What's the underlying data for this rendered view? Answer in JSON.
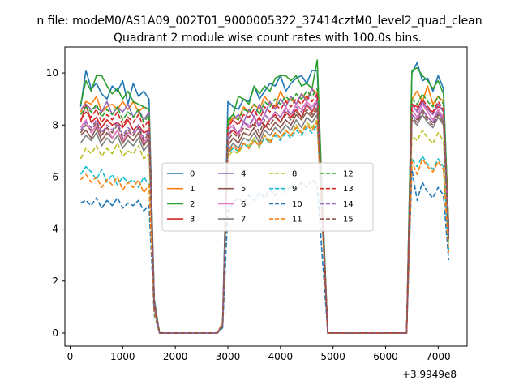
{
  "chart_data": {
    "type": "line",
    "suptitle": "n file: modeM0/AS1A09_002T01_9000005322_37414cztM0_level2_quad_clean",
    "title": "Quadrant 2 module wise count rates with 100.0s bins.",
    "xlabel": "",
    "ylabel": "",
    "x_offset_label": "+3.9949e8",
    "xlim": [
      -100,
      7550
    ],
    "ylim": [
      -0.5,
      11.0
    ],
    "x_ticks": [
      0,
      1000,
      2000,
      3000,
      4000,
      5000,
      6000,
      7000
    ],
    "y_ticks": [
      0,
      2,
      4,
      6,
      8,
      10
    ],
    "grid": false,
    "legend_position": "center",
    "legend_columns": 4,
    "x": [
      200,
      300,
      400,
      500,
      600,
      700,
      800,
      900,
      1000,
      1100,
      1200,
      1300,
      1400,
      1500,
      1600,
      1700,
      1800,
      1900,
      2000,
      2100,
      2200,
      2300,
      2400,
      2500,
      2600,
      2700,
      2800,
      2900,
      3000,
      3100,
      3200,
      3300,
      3400,
      3500,
      3600,
      3700,
      3800,
      3900,
      4000,
      4100,
      4200,
      4300,
      4400,
      4500,
      4600,
      4700,
      4800,
      4900,
      5000,
      5100,
      5200,
      5300,
      5400,
      5500,
      5600,
      5700,
      5800,
      5900,
      6000,
      6100,
      6200,
      6300,
      6400,
      6500,
      6600,
      6700,
      6800,
      6900,
      7000,
      7100,
      7200
    ],
    "series": [
      {
        "name": "0",
        "color": "#1f77b4",
        "dash": "solid",
        "values": [
          8.7,
          10.1,
          9.4,
          9.6,
          9.2,
          9.0,
          9.5,
          9.3,
          9.7,
          8.8,
          9.6,
          9.1,
          9.3,
          9.0,
          1.3,
          0,
          0,
          0,
          0,
          0,
          0,
          0,
          0,
          0,
          0,
          0,
          0,
          0.4,
          8.9,
          8.7,
          8.6,
          9.0,
          8.9,
          9.5,
          9.0,
          9.3,
          9.6,
          9.5,
          9.9,
          9.3,
          9.6,
          9.8,
          9.9,
          9.6,
          10.1,
          10.1,
          5.0,
          0,
          0,
          0,
          0,
          0,
          0,
          0,
          0,
          0,
          0,
          0,
          0,
          0,
          0,
          0,
          0,
          10.0,
          10.4,
          9.7,
          9.8,
          9.3,
          9.9,
          9.4,
          4.0
        ]
      },
      {
        "name": "1",
        "color": "#ff7f0e",
        "dash": "solid",
        "values": [
          8.5,
          8.9,
          8.8,
          9.1,
          8.5,
          8.7,
          8.8,
          8.6,
          8.9,
          8.6,
          8.9,
          8.5,
          8.7,
          8.6,
          1.2,
          0,
          0,
          0,
          0,
          0,
          0,
          0,
          0,
          0,
          0,
          0,
          0,
          0.4,
          8.0,
          8.3,
          8.2,
          8.7,
          8.5,
          8.8,
          8.6,
          9.1,
          8.8,
          8.7,
          9.3,
          8.9,
          9.0,
          8.8,
          9.2,
          9.0,
          9.4,
          9.2,
          4.7,
          0,
          0,
          0,
          0,
          0,
          0,
          0,
          0,
          0,
          0,
          0,
          0,
          0,
          0,
          0,
          0,
          9.0,
          9.3,
          8.9,
          9.5,
          8.8,
          9.1,
          8.9,
          3.8
        ]
      },
      {
        "name": "2",
        "color": "#2ca02c",
        "dash": "solid",
        "values": [
          8.8,
          9.7,
          9.3,
          9.9,
          9.9,
          9.5,
          9.2,
          9.4,
          9.0,
          9.3,
          8.9,
          8.8,
          8.7,
          8.6,
          1.2,
          0,
          0,
          0,
          0,
          0,
          0,
          0,
          0,
          0,
          0,
          0,
          0,
          0.3,
          8.2,
          8.4,
          9.1,
          9.0,
          8.8,
          9.5,
          9.2,
          9.5,
          9.3,
          9.8,
          9.9,
          9.9,
          9.7,
          9.9,
          9.5,
          9.6,
          9.4,
          10.5,
          4.9,
          0,
          0,
          0,
          0,
          0,
          0,
          0,
          0,
          0,
          0,
          0,
          0,
          0,
          0,
          0,
          0,
          10.1,
          10.2,
          9.9,
          9.7,
          9.4,
          9.7,
          9.2,
          4.1
        ]
      },
      {
        "name": "3",
        "color": "#d62728",
        "dash": "solid",
        "values": [
          8.1,
          8.8,
          8.1,
          8.3,
          7.9,
          8.2,
          8.0,
          8.1,
          7.9,
          8.2,
          7.8,
          8.0,
          7.7,
          7.8,
          1.1,
          0,
          0,
          0,
          0,
          0,
          0,
          0,
          0,
          0,
          0,
          0,
          0,
          0.3,
          7.6,
          7.8,
          7.6,
          8.1,
          7.9,
          8.0,
          8.3,
          7.9,
          8.2,
          8.4,
          8.1,
          8.5,
          8.3,
          8.6,
          8.3,
          8.8,
          8.5,
          8.9,
          4.4,
          0,
          0,
          0,
          0,
          0,
          0,
          0,
          0,
          0,
          0,
          0,
          0,
          0,
          0,
          0,
          0,
          8.8,
          8.7,
          8.9,
          8.6,
          8.5,
          8.7,
          8.6,
          3.9
        ]
      },
      {
        "name": "4",
        "color": "#9467bd",
        "dash": "solid",
        "values": [
          8.6,
          8.8,
          8.6,
          8.7,
          8.5,
          8.9,
          8.4,
          8.7,
          8.5,
          8.8,
          8.3,
          8.6,
          8.2,
          8.5,
          1.1,
          0,
          0,
          0,
          0,
          0,
          0,
          0,
          0,
          0,
          0,
          0,
          0,
          0.3,
          7.9,
          8.2,
          8.4,
          8.1,
          8.6,
          8.3,
          8.8,
          8.4,
          8.9,
          8.6,
          9.0,
          8.7,
          9.1,
          8.8,
          9.2,
          8.9,
          9.4,
          9.0,
          4.5,
          0,
          0,
          0,
          0,
          0,
          0,
          0,
          0,
          0,
          0,
          0,
          0,
          0,
          0,
          0,
          0,
          8.8,
          8.5,
          8.9,
          8.6,
          8.4,
          8.8,
          8.5,
          3.8
        ]
      },
      {
        "name": "5",
        "color": "#8c564b",
        "dash": "solid",
        "values": [
          7.6,
          7.8,
          7.5,
          7.9,
          7.4,
          7.7,
          7.5,
          7.8,
          7.3,
          7.6,
          7.4,
          7.7,
          7.2,
          7.5,
          1.0,
          0,
          0,
          0,
          0,
          0,
          0,
          0,
          0,
          0,
          0,
          0,
          0,
          0.3,
          7.2,
          7.5,
          7.3,
          7.7,
          7.6,
          7.9,
          7.5,
          8.0,
          7.8,
          8.1,
          7.9,
          8.2,
          8.0,
          8.4,
          8.2,
          8.5,
          8.3,
          8.6,
          4.3,
          0,
          0,
          0,
          0,
          0,
          0,
          0,
          0,
          0,
          0,
          0,
          0,
          0,
          0,
          0,
          0,
          8.4,
          8.2,
          8.6,
          8.3,
          8.1,
          8.5,
          8.2,
          3.7
        ]
      },
      {
        "name": "6",
        "color": "#e377c2",
        "dash": "solid",
        "values": [
          7.9,
          8.2,
          7.7,
          8.0,
          7.6,
          7.9,
          7.5,
          7.8,
          7.4,
          7.7,
          7.6,
          7.9,
          7.3,
          7.6,
          1.0,
          0,
          0,
          0,
          0,
          0,
          0,
          0,
          0,
          0,
          0,
          0,
          0,
          0.3,
          7.8,
          8.0,
          7.6,
          8.1,
          7.9,
          8.3,
          8.0,
          8.4,
          8.2,
          8.5,
          8.3,
          8.7,
          8.4,
          8.8,
          8.6,
          8.9,
          8.7,
          9.0,
          4.4,
          0,
          0,
          0,
          0,
          0,
          0,
          0,
          0,
          0,
          0,
          0,
          0,
          0,
          0,
          0,
          0,
          8.6,
          8.3,
          8.8,
          8.5,
          8.2,
          8.6,
          8.3,
          3.8
        ]
      },
      {
        "name": "7",
        "color": "#7f7f7f",
        "dash": "solid",
        "values": [
          7.3,
          7.6,
          7.4,
          7.7,
          7.2,
          7.5,
          7.3,
          7.6,
          7.1,
          7.4,
          7.2,
          7.5,
          7.0,
          7.3,
          1.0,
          0,
          0,
          0,
          0,
          0,
          0,
          0,
          0,
          0,
          0,
          0,
          0,
          0.3,
          7.0,
          7.3,
          7.1,
          7.5,
          7.4,
          7.7,
          7.3,
          7.8,
          7.6,
          7.9,
          7.7,
          8.0,
          7.8,
          8.2,
          7.9,
          8.3,
          8.1,
          8.4,
          4.2,
          0,
          0,
          0,
          0,
          0,
          0,
          0,
          0,
          0,
          0,
          0,
          0,
          0,
          0,
          0,
          0,
          8.2,
          8.0,
          8.4,
          8.1,
          7.9,
          8.3,
          8.0,
          3.6
        ]
      },
      {
        "name": "8",
        "color": "#bcbd22",
        "dash": "dashed",
        "values": [
          6.7,
          7.1,
          6.9,
          7.2,
          6.8,
          7.1,
          6.9,
          7.3,
          6.8,
          7.0,
          6.9,
          7.2,
          6.7,
          6.9,
          0.9,
          0,
          0,
          0,
          0,
          0,
          0,
          0,
          0,
          0,
          0,
          0,
          0,
          0.3,
          6.8,
          7.0,
          6.9,
          7.3,
          7.2,
          7.5,
          7.1,
          7.6,
          7.4,
          7.7,
          7.5,
          7.8,
          7.6,
          8.0,
          7.7,
          8.1,
          7.9,
          8.2,
          4.1,
          0,
          0,
          0,
          0,
          0,
          0,
          0,
          0,
          0,
          0,
          0,
          0,
          0,
          0,
          0,
          0,
          7.6,
          7.4,
          7.8,
          7.5,
          7.3,
          7.7,
          7.4,
          3.4
        ]
      },
      {
        "name": "9",
        "color": "#17becf",
        "dash": "dashed",
        "values": [
          6.1,
          6.4,
          6.2,
          5.9,
          6.3,
          5.8,
          6.1,
          5.7,
          6.0,
          5.8,
          5.9,
          5.6,
          6.0,
          5.7,
          0.8,
          0,
          0,
          0,
          0,
          0,
          0,
          0,
          0,
          0,
          0,
          0,
          0,
          0.3,
          6.9,
          7.1,
          7.0,
          7.3,
          7.1,
          7.4,
          7.2,
          7.5,
          7.3,
          7.6,
          7.4,
          7.7,
          7.5,
          7.8,
          7.6,
          7.9,
          7.7,
          8.0,
          4.0,
          0,
          0,
          0,
          0,
          0,
          0,
          0,
          0,
          0,
          0,
          0,
          0,
          0,
          0,
          0,
          0,
          6.7,
          6.4,
          6.8,
          6.5,
          6.3,
          6.7,
          6.4,
          3.2
        ]
      },
      {
        "name": "10",
        "color": "#1f77b4",
        "dash": "dashed",
        "values": [
          5.0,
          5.1,
          4.9,
          5.2,
          4.8,
          5.1,
          4.9,
          5.2,
          4.8,
          5.0,
          4.9,
          5.1,
          4.7,
          4.9,
          0.7,
          0,
          0,
          0,
          0,
          0,
          0,
          0,
          0,
          0,
          0,
          0,
          0,
          0.2,
          4.7,
          5.0,
          5.2,
          5.0,
          5.3,
          5.1,
          5.4,
          5.2,
          5.5,
          5.3,
          5.6,
          5.4,
          5.7,
          5.5,
          5.8,
          5.6,
          5.9,
          5.7,
          2.8,
          0,
          0,
          0,
          0,
          0,
          0,
          0,
          0,
          0,
          0,
          0,
          0,
          0,
          0,
          0,
          0,
          6.3,
          5.1,
          5.8,
          5.4,
          5.2,
          5.6,
          5.3,
          2.8
        ]
      },
      {
        "name": "11",
        "color": "#ff7f0e",
        "dash": "dashed",
        "values": [
          5.9,
          6.1,
          5.8,
          6.0,
          5.6,
          5.9,
          5.7,
          6.0,
          5.5,
          5.8,
          5.6,
          5.9,
          5.4,
          5.7,
          0.8,
          0,
          0,
          0,
          0,
          0,
          0,
          0,
          0,
          0,
          0,
          0,
          0,
          0.3,
          6.9,
          7.2,
          7.0,
          7.3,
          7.1,
          7.4,
          7.2,
          7.6,
          7.3,
          7.7,
          7.5,
          7.8,
          7.6,
          7.9,
          7.7,
          8.0,
          7.8,
          8.1,
          4.0,
          0,
          0,
          0,
          0,
          0,
          0,
          0,
          0,
          0,
          0,
          0,
          0,
          0,
          0,
          0,
          0,
          6.6,
          6.1,
          6.7,
          6.4,
          6.2,
          6.6,
          6.3,
          3.1
        ]
      },
      {
        "name": "12",
        "color": "#2ca02c",
        "dash": "dashed",
        "values": [
          8.4,
          8.7,
          8.5,
          8.8,
          8.3,
          8.6,
          8.4,
          8.7,
          8.2,
          8.5,
          8.3,
          8.6,
          8.1,
          8.4,
          1.1,
          0,
          0,
          0,
          0,
          0,
          0,
          0,
          0,
          0,
          0,
          0,
          0,
          0.3,
          8.1,
          8.4,
          8.2,
          8.6,
          8.5,
          8.8,
          8.4,
          8.9,
          8.7,
          9.0,
          8.8,
          9.1,
          8.9,
          9.2,
          9.0,
          9.3,
          9.1,
          9.4,
          4.6,
          0,
          0,
          0,
          0,
          0,
          0,
          0,
          0,
          0,
          0,
          0,
          0,
          0,
          0,
          0,
          0,
          9.0,
          8.8,
          9.2,
          8.9,
          8.7,
          9.1,
          8.8,
          3.9
        ]
      },
      {
        "name": "13",
        "color": "#d62728",
        "dash": "dashed",
        "values": [
          8.2,
          8.5,
          8.3,
          8.6,
          8.1,
          8.4,
          8.2,
          8.5,
          8.0,
          8.3,
          8.1,
          8.4,
          7.9,
          8.2,
          1.1,
          0,
          0,
          0,
          0,
          0,
          0,
          0,
          0,
          0,
          0,
          0,
          0,
          0.3,
          7.9,
          8.2,
          8.0,
          8.4,
          8.3,
          8.6,
          8.2,
          8.7,
          8.5,
          8.8,
          8.6,
          8.9,
          8.7,
          9.0,
          8.8,
          9.1,
          8.9,
          9.2,
          4.5,
          0,
          0,
          0,
          0,
          0,
          0,
          0,
          0,
          0,
          0,
          0,
          0,
          0,
          0,
          0,
          0,
          8.8,
          8.6,
          9.0,
          8.7,
          8.5,
          8.9,
          8.6,
          3.9
        ]
      },
      {
        "name": "14",
        "color": "#9467bd",
        "dash": "dashed",
        "values": [
          7.8,
          8.1,
          7.9,
          8.2,
          7.7,
          8.0,
          7.8,
          8.1,
          7.6,
          7.9,
          7.7,
          8.0,
          7.5,
          7.8,
          1.0,
          0,
          0,
          0,
          0,
          0,
          0,
          0,
          0,
          0,
          0,
          0,
          0,
          0.3,
          7.6,
          7.9,
          7.7,
          8.1,
          8.0,
          8.3,
          7.9,
          8.4,
          8.2,
          8.5,
          8.3,
          8.6,
          8.4,
          8.7,
          8.5,
          8.8,
          8.6,
          8.9,
          4.4,
          0,
          0,
          0,
          0,
          0,
          0,
          0,
          0,
          0,
          0,
          0,
          0,
          0,
          0,
          0,
          0,
          8.4,
          8.2,
          8.6,
          8.3,
          8.1,
          8.5,
          8.2,
          3.7
        ]
      },
      {
        "name": "15",
        "color": "#8c564b",
        "dash": "dashed",
        "values": [
          7.7,
          8.0,
          7.8,
          8.1,
          7.6,
          7.9,
          7.7,
          8.0,
          7.5,
          7.8,
          7.6,
          7.9,
          7.4,
          7.7,
          1.0,
          0,
          0,
          0,
          0,
          0,
          0,
          0,
          0,
          0,
          0,
          0,
          0,
          0.3,
          7.4,
          7.7,
          7.5,
          7.9,
          7.8,
          8.1,
          7.7,
          8.2,
          8.0,
          8.3,
          8.1,
          8.4,
          8.2,
          8.5,
          8.3,
          8.6,
          8.4,
          8.7,
          4.3,
          0,
          0,
          0,
          0,
          0,
          0,
          0,
          0,
          0,
          0,
          0,
          0,
          0,
          0,
          0,
          0,
          8.3,
          8.1,
          8.5,
          8.2,
          8.0,
          8.4,
          8.1,
          3.6
        ]
      }
    ]
  }
}
